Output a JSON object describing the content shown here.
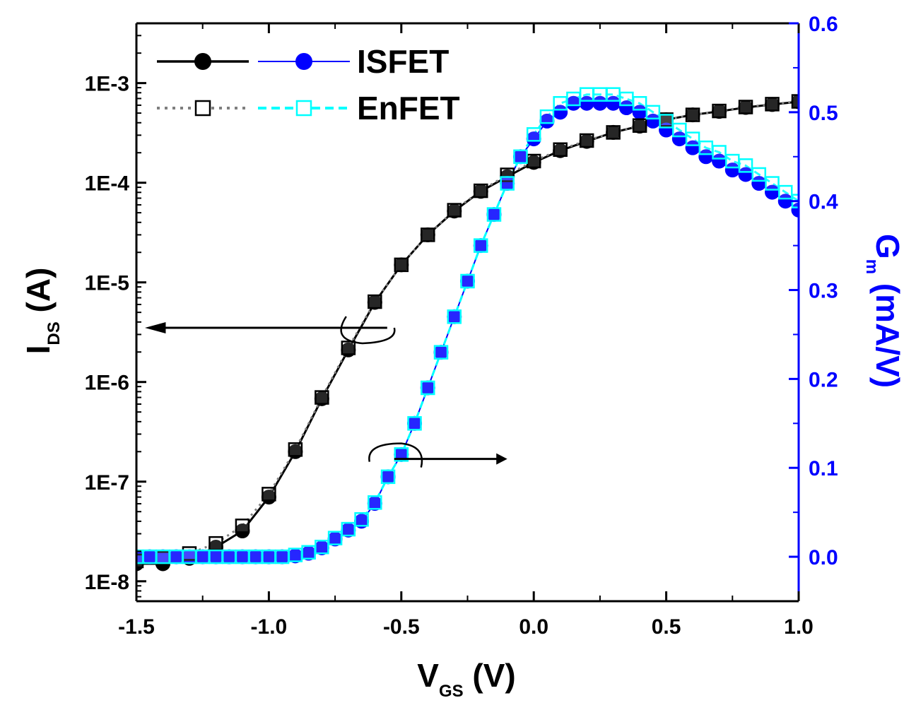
{
  "chart_data": {
    "type": "line",
    "xlabel": {
      "main": "V",
      "sub": "GS",
      "unit": " (V)"
    },
    "ylabel_left": {
      "main": "I",
      "sub": "DS",
      "unit": " (A)"
    },
    "ylabel_right": {
      "main": "G",
      "sub": "m",
      "unit": " (mA/V)"
    },
    "xlim": [
      -1.5,
      1.0
    ],
    "xticks": [
      -1.5,
      -1.0,
      -0.5,
      0.0,
      0.5,
      1.0
    ],
    "xtick_labels": [
      "-1.5",
      "-1.0",
      "-0.5",
      "0.0",
      "0.5",
      "1.0"
    ],
    "ylim_left_log10": [
      -8.2,
      -2.4
    ],
    "yscale_left": "log",
    "yticks_left_log10": [
      -8,
      -7,
      -6,
      -5,
      -4,
      -3
    ],
    "ytick_labels_left": [
      "1E-8",
      "1E-7",
      "1E-6",
      "1E-5",
      "1E-4",
      "1E-3"
    ],
    "ylim_right": [
      -0.05,
      0.6
    ],
    "yticks_right": [
      0.0,
      0.1,
      0.2,
      0.3,
      0.4,
      0.5,
      0.6
    ],
    "ytick_labels_right": [
      "0.0",
      "0.1",
      "0.2",
      "0.3",
      "0.4",
      "0.5",
      "0.6"
    ],
    "legend": {
      "position": "top-left",
      "entries": [
        {
          "label": "ISFET",
          "styles": [
            "black solid line, filled black circle",
            "blue solid line, filled blue circle"
          ]
        },
        {
          "label": "EnFET",
          "styles": [
            "gray dotted line, open square",
            "cyan dashed line, open cyan square"
          ]
        }
      ]
    },
    "colors": {
      "isfet_ids": "#000000",
      "enfet_ids": "#7f7f7f",
      "isfet_gm": "#0000ff",
      "enfet_gm": "#00ffff",
      "right_axis": "#0000ff"
    },
    "series": [
      {
        "name": "ISFET",
        "quantity": "IDS",
        "axis": "left",
        "x": [
          -1.5,
          -1.4,
          -1.3,
          -1.2,
          -1.1,
          -1.0,
          -0.9,
          -0.8,
          -0.7,
          -0.6,
          -0.5,
          -0.4,
          -0.3,
          -0.2,
          -0.1,
          0.0,
          0.1,
          0.2,
          0.3,
          0.4,
          0.5,
          0.6,
          0.7,
          0.8,
          0.9,
          1.0
        ],
        "y": [
          1.5e-08,
          1.5e-08,
          1.7e-08,
          2.2e-08,
          3.2e-08,
          7e-08,
          2e-07,
          6.8e-07,
          2.1e-06,
          6.3e-06,
          1.5e-05,
          3e-05,
          5.2e-05,
          8.2e-05,
          0.000115,
          0.00016,
          0.00021,
          0.00026,
          0.00032,
          0.00037,
          0.00043,
          0.00048,
          0.00052,
          0.00057,
          0.00061,
          0.00065
        ]
      },
      {
        "name": "EnFET",
        "quantity": "IDS",
        "axis": "left",
        "x": [
          -1.5,
          -1.4,
          -1.3,
          -1.2,
          -1.1,
          -1.0,
          -0.9,
          -0.8,
          -0.7,
          -0.6,
          -0.5,
          -0.4,
          -0.3,
          -0.2,
          -0.1,
          0.0,
          0.1,
          0.2,
          0.3,
          0.4,
          0.5,
          0.6,
          0.7,
          0.8,
          0.9,
          1.0
        ],
        "y": [
          1.6e-08,
          1.7e-08,
          1.9e-08,
          2.4e-08,
          3.6e-08,
          7.5e-08,
          2.1e-07,
          7e-07,
          2.2e-06,
          6.4e-06,
          1.5e-05,
          3e-05,
          5.3e-05,
          8.3e-05,
          0.00012,
          0.000165,
          0.000215,
          0.000265,
          0.00032,
          0.000375,
          0.00043,
          0.00048,
          0.000525,
          0.000575,
          0.000615,
          0.000655
        ]
      },
      {
        "name": "ISFET",
        "quantity": "Gm",
        "axis": "right",
        "x": [
          -1.5,
          -1.45,
          -1.4,
          -1.35,
          -1.3,
          -1.25,
          -1.2,
          -1.15,
          -1.1,
          -1.05,
          -1.0,
          -0.95,
          -0.9,
          -0.85,
          -0.8,
          -0.75,
          -0.7,
          -0.65,
          -0.6,
          -0.55,
          -0.5,
          -0.45,
          -0.4,
          -0.35,
          -0.3,
          -0.25,
          -0.2,
          -0.15,
          -0.1,
          -0.05,
          0.0,
          0.05,
          0.1,
          0.15,
          0.2,
          0.25,
          0.3,
          0.35,
          0.4,
          0.45,
          0.5,
          0.55,
          0.6,
          0.65,
          0.7,
          0.75,
          0.8,
          0.85,
          0.9,
          0.95,
          1.0
        ],
        "y": [
          0.0,
          0.0,
          0.0,
          0.0,
          0.0,
          0.0,
          0.0,
          0.0,
          0.0,
          0.0,
          0.0,
          0.0,
          0.001,
          0.004,
          0.01,
          0.02,
          0.03,
          0.04,
          0.06,
          0.09,
          0.115,
          0.15,
          0.19,
          0.23,
          0.27,
          0.31,
          0.35,
          0.385,
          0.42,
          0.45,
          0.47,
          0.49,
          0.5,
          0.51,
          0.51,
          0.51,
          0.51,
          0.505,
          0.5,
          0.49,
          0.48,
          0.47,
          0.46,
          0.45,
          0.445,
          0.435,
          0.43,
          0.42,
          0.41,
          0.4,
          0.39
        ]
      },
      {
        "name": "EnFET",
        "quantity": "Gm",
        "axis": "right",
        "x": [
          -1.5,
          -1.45,
          -1.4,
          -1.35,
          -1.3,
          -1.25,
          -1.2,
          -1.15,
          -1.1,
          -1.05,
          -1.0,
          -0.95,
          -0.9,
          -0.85,
          -0.8,
          -0.75,
          -0.7,
          -0.65,
          -0.6,
          -0.55,
          -0.5,
          -0.45,
          -0.4,
          -0.35,
          -0.3,
          -0.25,
          -0.2,
          -0.15,
          -0.1,
          -0.05,
          0.0,
          0.05,
          0.1,
          0.15,
          0.2,
          0.25,
          0.3,
          0.35,
          0.4,
          0.45,
          0.5,
          0.55,
          0.6,
          0.65,
          0.7,
          0.75,
          0.8,
          0.85,
          0.9,
          0.95,
          1.0
        ],
        "y": [
          0.0,
          0.0,
          0.0,
          0.0,
          0.0,
          0.0,
          0.0,
          0.0,
          0.0,
          0.0,
          0.0,
          0.0,
          0.002,
          0.005,
          0.011,
          0.021,
          0.031,
          0.042,
          0.061,
          0.09,
          0.115,
          0.15,
          0.19,
          0.23,
          0.27,
          0.31,
          0.35,
          0.385,
          0.42,
          0.45,
          0.475,
          0.495,
          0.51,
          0.515,
          0.52,
          0.52,
          0.52,
          0.515,
          0.51,
          0.5,
          0.49,
          0.48,
          0.47,
          0.46,
          0.455,
          0.445,
          0.44,
          0.43,
          0.42,
          0.41,
          0.4
        ]
      }
    ],
    "annotations": [
      {
        "type": "arrow",
        "direction": "left",
        "meaning": "IDS curves refer to left axis"
      },
      {
        "type": "arrow",
        "direction": "right",
        "meaning": "Gm curves refer to right axis"
      }
    ]
  }
}
